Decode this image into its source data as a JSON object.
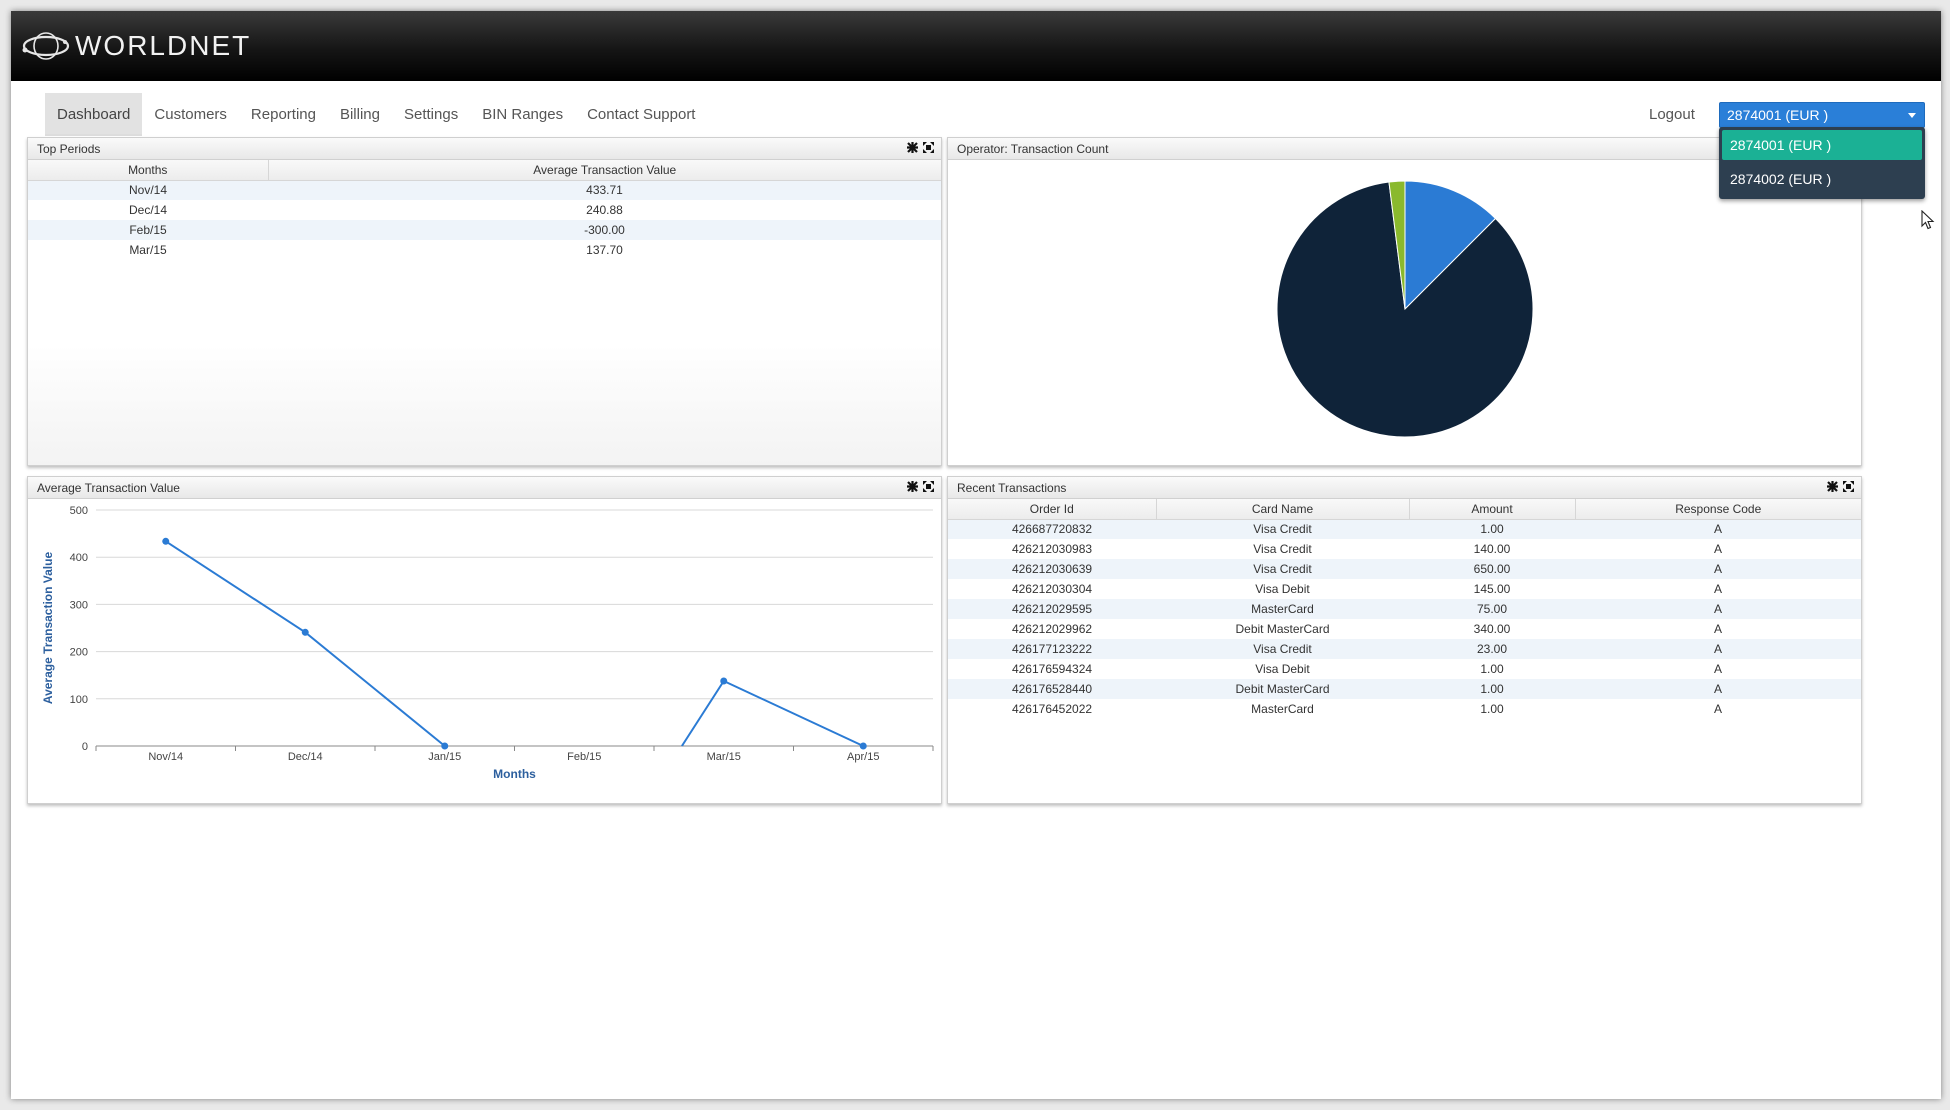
{
  "brand": {
    "name": "WORLDNET"
  },
  "nav": {
    "tabs": [
      {
        "label": "Dashboard",
        "active": true
      },
      {
        "label": "Customers"
      },
      {
        "label": "Reporting"
      },
      {
        "label": "Billing"
      },
      {
        "label": "Settings"
      },
      {
        "label": "BIN Ranges"
      },
      {
        "label": "Contact Support"
      }
    ],
    "logout": "Logout"
  },
  "account": {
    "selected": "2874001 (EUR )",
    "options": [
      "2874001 (EUR )",
      "2874002 (EUR )"
    ]
  },
  "top_periods": {
    "title": "Top Periods",
    "columns": [
      "Months",
      "Average Transaction Value"
    ],
    "rows": [
      [
        "Nov/14",
        "433.71"
      ],
      [
        "Dec/14",
        "240.88"
      ],
      [
        "Feb/15",
        "-300.00"
      ],
      [
        "Mar/15",
        "137.70"
      ]
    ]
  },
  "operator_panel": {
    "title": "Operator: Transaction Count"
  },
  "avg_panel": {
    "title": "Average Transaction Value"
  },
  "recent": {
    "title": "Recent Transactions",
    "columns": [
      "Order Id",
      "Card Name",
      "Amount",
      "Response Code"
    ],
    "rows": [
      [
        "426687720832",
        "Visa Credit",
        "1.00",
        "A"
      ],
      [
        "426212030983",
        "Visa Credit",
        "140.00",
        "A"
      ],
      [
        "426212030639",
        "Visa Credit",
        "650.00",
        "A"
      ],
      [
        "426212030304",
        "Visa Debit",
        "145.00",
        "A"
      ],
      [
        "426212029595",
        "MasterCard",
        "75.00",
        "A"
      ],
      [
        "426212029962",
        "Debit MasterCard",
        "340.00",
        "A"
      ],
      [
        "426177123222",
        "Visa Credit",
        "23.00",
        "A"
      ],
      [
        "426176594324",
        "Visa Debit",
        "1.00",
        "A"
      ],
      [
        "426176528440",
        "Debit MasterCard",
        "1.00",
        "A"
      ],
      [
        "426176452022",
        "MasterCard",
        "1.00",
        "A"
      ]
    ]
  },
  "colors": {
    "accent": "#2a7fd8",
    "selected_option": "#1bb195",
    "menu_bg": "#2d3f50",
    "line": "#2b7bd4"
  },
  "chart_data": [
    {
      "type": "pie",
      "title": "Operator: Transaction Count",
      "slices": [
        {
          "value": 12.5,
          "color": "#2b7bd4"
        },
        {
          "value": 85.5,
          "color": "#0f2339"
        },
        {
          "value": 2.0,
          "color": "#8ab92d"
        }
      ]
    },
    {
      "type": "line",
      "title": "",
      "xlabel": "Months",
      "ylabel": "Average Transaction Value",
      "categories": [
        "Nov/14",
        "Dec/14",
        "Jan/15",
        "Feb/15",
        "Mar/15",
        "Apr/15"
      ],
      "yticks": [
        0,
        100,
        200,
        300,
        400,
        500
      ],
      "ylim": [
        0,
        500
      ],
      "segments": [
        [
          [
            0,
            433.71
          ],
          [
            1,
            240.88
          ],
          [
            2,
            0
          ]
        ],
        [
          [
            3.7,
            0
          ],
          [
            4,
            137.7
          ],
          [
            5,
            0
          ]
        ]
      ],
      "points": [
        [
          0,
          433.71
        ],
        [
          1,
          240.88
        ],
        [
          2,
          0
        ],
        [
          4,
          137.7
        ],
        [
          5,
          0
        ]
      ]
    }
  ]
}
